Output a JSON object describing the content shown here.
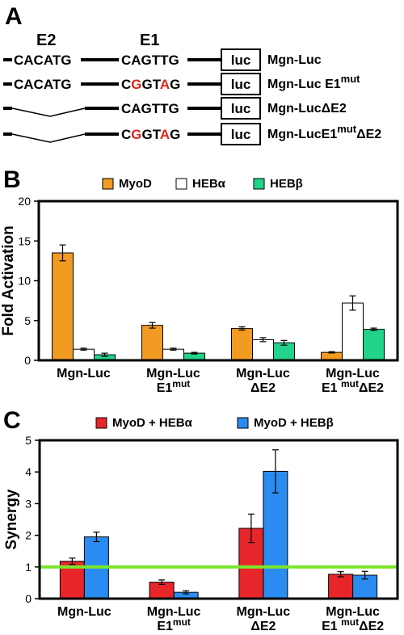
{
  "panel_a": {
    "letter": "A",
    "e2_label": "E2",
    "e1_label": "E1",
    "luc_label": "luc",
    "mut_color": "#e0261b",
    "constructs": [
      {
        "name": "Mgn-Luc",
        "name_sup": "",
        "name_tail": "",
        "e2": "CACATG",
        "e1": [
          {
            "t": "CAGTTG",
            "m": false
          }
        ]
      },
      {
        "name": "Mgn-Luc E1",
        "name_sup": "mut",
        "name_tail": "",
        "e2": "CACATG",
        "e1": [
          {
            "t": "C",
            "m": false
          },
          {
            "t": "G",
            "m": true
          },
          {
            "t": "GT",
            "m": false
          },
          {
            "t": "A",
            "m": true
          },
          {
            "t": "G",
            "m": false
          }
        ]
      },
      {
        "name": "Mgn-LucΔE2",
        "name_sup": "",
        "name_tail": "",
        "e2": "",
        "e1": [
          {
            "t": "CAGTTG",
            "m": false
          }
        ]
      },
      {
        "name": "Mgn-LucE1",
        "name_sup": "mut",
        "name_tail": "ΔE2",
        "e2": "",
        "e1": [
          {
            "t": "C",
            "m": false
          },
          {
            "t": "G",
            "m": true
          },
          {
            "t": "GT",
            "m": false
          },
          {
            "t": "A",
            "m": true
          },
          {
            "t": "G",
            "m": false
          }
        ]
      }
    ]
  },
  "chart_data": [
    {
      "panel": "B",
      "type": "bar",
      "ylabel": "Fold Activation",
      "ylim": [
        0,
        20
      ],
      "yticks": [
        0,
        5,
        10,
        15,
        20
      ],
      "categories": [
        {
          "lines": [
            {
              "main": "Mgn-Luc",
              "sup": "",
              "tail": ""
            }
          ]
        },
        {
          "lines": [
            {
              "main": "Mgn-Luc",
              "sup": "",
              "tail": ""
            },
            {
              "main": "E1",
              "sup": "mut",
              "tail": ""
            }
          ]
        },
        {
          "lines": [
            {
              "main": "Mgn-Luc",
              "sup": "",
              "tail": ""
            },
            {
              "main": "ΔE2",
              "sup": "",
              "tail": ""
            }
          ]
        },
        {
          "lines": [
            {
              "main": "Mgn-Luc",
              "sup": "",
              "tail": ""
            },
            {
              "main": "E1 ",
              "sup": "mut",
              "tail": "ΔE2"
            }
          ]
        }
      ],
      "series": [
        {
          "name": "MyoD",
          "color": "#f29b22",
          "values": [
            13.5,
            4.4,
            4.0,
            1.0
          ],
          "errors": [
            1.0,
            0.35,
            0.2,
            0.08
          ]
        },
        {
          "name": "HEBα",
          "color": "#ffffff",
          "values": [
            1.4,
            1.4,
            2.6,
            7.2
          ],
          "errors": [
            0.12,
            0.12,
            0.25,
            0.9
          ]
        },
        {
          "name": "HEBβ",
          "color": "#22d38a",
          "values": [
            0.7,
            0.9,
            2.2,
            3.9
          ],
          "errors": [
            0.2,
            0.1,
            0.3,
            0.15
          ]
        }
      ]
    },
    {
      "panel": "C",
      "type": "bar",
      "ylabel": "Synergy",
      "ylim": [
        0,
        5
      ],
      "yticks": [
        0,
        1,
        2,
        3,
        4,
        5
      ],
      "reference_line": {
        "y": 1,
        "color": "#7ae62b"
      },
      "categories": [
        {
          "lines": [
            {
              "main": "Mgn-Luc",
              "sup": "",
              "tail": ""
            }
          ]
        },
        {
          "lines": [
            {
              "main": "Mgn-Luc",
              "sup": "",
              "tail": ""
            },
            {
              "main": "E1",
              "sup": "mut",
              "tail": ""
            }
          ]
        },
        {
          "lines": [
            {
              "main": "Mgn-Luc",
              "sup": "",
              "tail": ""
            },
            {
              "main": "ΔE2",
              "sup": "",
              "tail": ""
            }
          ]
        },
        {
          "lines": [
            {
              "main": "Mgn-Luc",
              "sup": "",
              "tail": ""
            },
            {
              "main": "E1 ",
              "sup": "mut",
              "tail": "ΔE2"
            }
          ]
        }
      ],
      "series": [
        {
          "name": "MyoD + HEBα",
          "color": "#e8262a",
          "values": [
            1.18,
            0.52,
            2.22,
            0.77
          ],
          "errors": [
            0.1,
            0.07,
            0.45,
            0.08
          ]
        },
        {
          "name": "MyoD + HEBβ",
          "color": "#2a8cf0",
          "values": [
            1.95,
            0.2,
            4.02,
            0.74
          ],
          "errors": [
            0.15,
            0.05,
            0.68,
            0.12
          ]
        }
      ]
    }
  ]
}
